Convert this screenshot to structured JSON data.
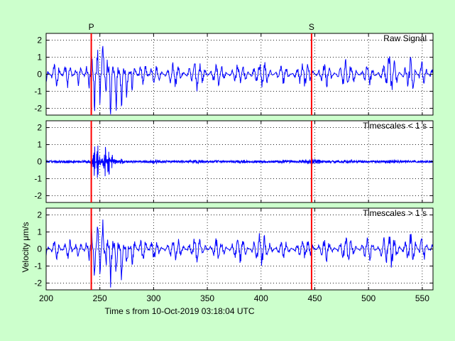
{
  "colors": {
    "background": "#ccffcc",
    "signal": "#0000ff",
    "marker": "#ff0000",
    "axes_bg": "#ffffff",
    "grid": "#000000"
  },
  "chart_data": {
    "type": "line",
    "xlabel": "Time s from 10-Oct-2019 03:18:04 UTC",
    "ylabel": "Velocity μm/s",
    "xlim": [
      200,
      560
    ],
    "xticks": [
      200,
      250,
      300,
      350,
      400,
      450,
      500,
      550
    ],
    "grid": true,
    "markers": [
      {
        "label": "P",
        "x": 242
      },
      {
        "label": "S",
        "x": 447
      }
    ],
    "panels": [
      {
        "label": "Raw Signal",
        "ylim": [
          -2.4,
          2.4
        ],
        "yticks": [
          -2,
          -1,
          0,
          1,
          2
        ],
        "series": {
          "x": [
            200,
            210,
            220,
            230,
            240,
            242,
            245,
            248,
            250,
            253,
            256,
            260,
            265,
            270,
            275,
            280,
            290,
            300,
            320,
            340,
            360,
            380,
            400,
            420,
            440,
            447,
            460,
            480,
            500,
            520,
            540,
            550,
            560
          ],
          "y": [
            0.4,
            -0.8,
            0.9,
            -0.7,
            0.8,
            -1.8,
            2.0,
            -2.0,
            1.5,
            -2.1,
            1.7,
            -2.2,
            1.6,
            -1.5,
            1.2,
            -1.0,
            0.9,
            -0.7,
            0.8,
            -0.9,
            0.7,
            -0.8,
            0.9,
            -0.6,
            0.8,
            0.3,
            -0.8,
            0.9,
            -0.7,
            1.1,
            -1.0,
            0.8,
            -0.5
          ]
        }
      },
      {
        "label": "Timescales < 1 s",
        "ylim": [
          -2.4,
          2.4
        ],
        "yticks": [
          -2,
          -1,
          0,
          1,
          2
        ],
        "series": {
          "x": [
            200,
            220,
            240,
            242,
            245,
            248,
            250,
            255,
            258,
            262,
            270,
            280,
            300,
            340,
            380,
            420,
            447,
            480,
            520,
            560
          ],
          "y": [
            0.1,
            -0.2,
            0.2,
            -0.4,
            0.7,
            -0.8,
            0.4,
            -0.6,
            0.7,
            -0.5,
            0.3,
            -0.2,
            0.2,
            -0.2,
            0.2,
            -0.2,
            0.3,
            -0.2,
            0.2,
            -0.1
          ]
        }
      },
      {
        "label": "Timescales > 1 s",
        "ylim": [
          -2.4,
          2.4
        ],
        "yticks": [
          -2,
          -1,
          0,
          1,
          2
        ],
        "series": {
          "x": [
            200,
            210,
            220,
            230,
            240,
            242,
            245,
            248,
            250,
            253,
            256,
            260,
            265,
            270,
            275,
            280,
            290,
            300,
            320,
            340,
            360,
            380,
            400,
            420,
            440,
            447,
            460,
            480,
            500,
            520,
            540,
            550,
            560
          ],
          "y": [
            0.4,
            -0.7,
            0.8,
            -0.6,
            0.7,
            -1.5,
            1.5,
            -1.8,
            1.4,
            -1.8,
            1.5,
            -1.9,
            1.4,
            -1.3,
            1.0,
            -0.9,
            0.8,
            -0.7,
            0.8,
            -0.8,
            0.7,
            -0.8,
            1.0,
            -0.6,
            0.7,
            0.3,
            -0.7,
            0.8,
            -0.7,
            1.2,
            -1.1,
            0.8,
            -0.4
          ]
        }
      }
    ]
  }
}
